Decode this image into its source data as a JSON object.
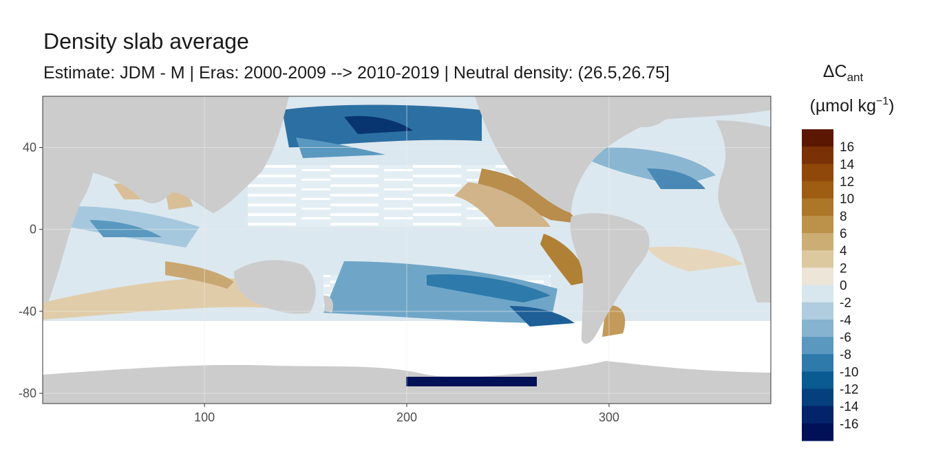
{
  "chart_data": {
    "type": "heatmap",
    "title": "Density slab average",
    "subtitle": "Estimate: JDM - M | Eras: 2000-2009 --> 2010-2019 | Neutral density: (26.5,26.75]",
    "xlabel": "",
    "ylabel": "",
    "xlim": [
      20,
      380
    ],
    "ylim": [
      -85,
      65
    ],
    "x_ticks": [
      100,
      200,
      300
    ],
    "y_ticks": [
      40,
      0,
      -40,
      -80
    ],
    "grid": true,
    "legend": {
      "title_main": "ΔC",
      "title_sub": "ant",
      "title_unit_pre": "(µmol kg",
      "title_unit_sup": "−1",
      "title_unit_post": ")",
      "placement": "right",
      "labels": [
        "16",
        "14",
        "12",
        "10",
        "8",
        "6",
        "4",
        "2",
        "0",
        "-2",
        "-4",
        "-6",
        "-8",
        "-10",
        "-12",
        "-14",
        "-16"
      ],
      "colors": [
        "#5c1702",
        "#7a3106",
        "#8f470a",
        "#9e5d12",
        "#ac7729",
        "#bc9149",
        "#ccae74",
        "#dcc9a0",
        "#ece5d8",
        "#d8e6ee",
        "#b0cddf",
        "#86b3cf",
        "#5a98bf",
        "#2d7aab",
        "#0b5b93",
        "#063f7d",
        "#03236a",
        "#001157"
      ]
    },
    "colors": {
      "land": "#cccccc",
      "no_data": "#ffffff",
      "grid": "#ebebeb"
    }
  }
}
